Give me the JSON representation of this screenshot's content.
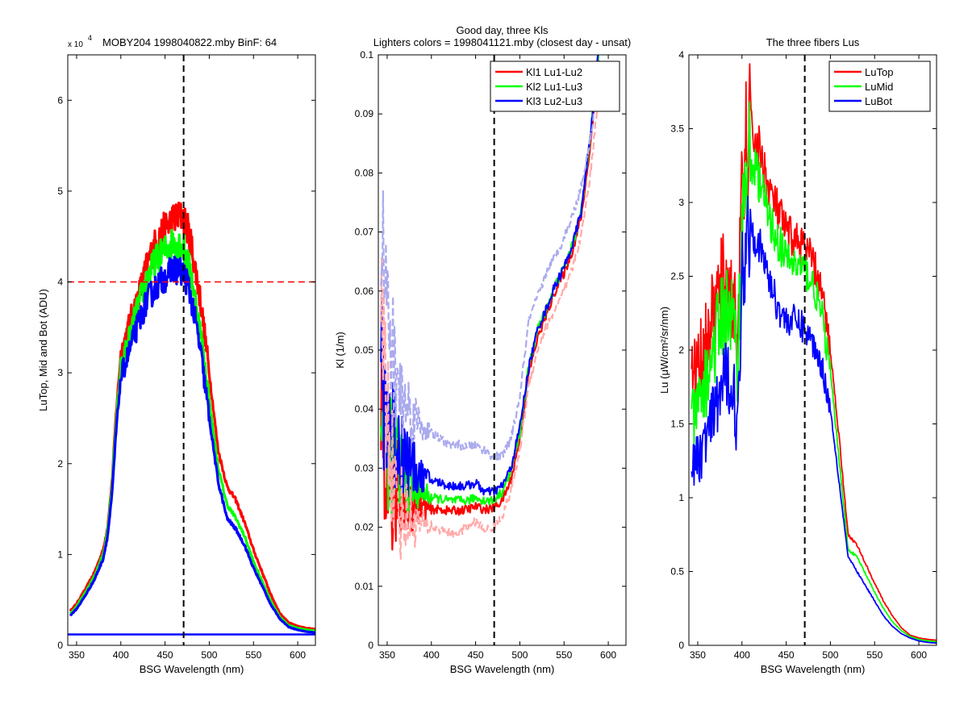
{
  "chart_data": [
    {
      "type": "line",
      "title": "MOBY204  1998040822.mby BinF: 64",
      "exponent_label": {
        "base": "x 10",
        "power": "4"
      },
      "xlabel": "BSG Wavelength (nm)",
      "ylabel": "LuTop, Mid and Bot (ADU)",
      "xlim": [
        340,
        620
      ],
      "ylim": [
        0,
        65000
      ],
      "xticks": [
        350,
        400,
        450,
        500,
        550,
        600
      ],
      "xtick_labels": [
        "350",
        "400",
        "450",
        "500",
        "550",
        "600"
      ],
      "yticks": [
        0,
        10000,
        20000,
        30000,
        40000,
        50000,
        60000
      ],
      "ytick_labels": [
        "0",
        "1",
        "2",
        "3",
        "4",
        "5",
        "6"
      ],
      "grid": false,
      "noisy_band_series": [
        "LuTop",
        "LuMid",
        "LuBot"
      ],
      "vline": {
        "x": 471,
        "color": "#000000",
        "style": "dashed"
      },
      "hline": {
        "y": 40000,
        "color": "#ff0000",
        "style": "dashed"
      },
      "flat_line": {
        "y": 1200,
        "color": "#0000ff"
      },
      "series": [
        {
          "name": "LuTop",
          "color": "#ff0000",
          "x": [
            343,
            350,
            360,
            370,
            380,
            385,
            390,
            395,
            400,
            410,
            420,
            430,
            440,
            450,
            460,
            470,
            475,
            480,
            490,
            500,
            510,
            520,
            530,
            540,
            550,
            560,
            570,
            580,
            590,
            600,
            610,
            620
          ],
          "y": [
            3800,
            4600,
            6200,
            8000,
            10500,
            13000,
            18000,
            26000,
            32000,
            35500,
            38500,
            42000,
            44500,
            46000,
            47000,
            47200,
            46000,
            44000,
            38000,
            30000,
            21500,
            17500,
            16000,
            13500,
            10500,
            8000,
            5500,
            3500,
            2500,
            2100,
            1900,
            1800
          ]
        },
        {
          "name": "LuMid",
          "color": "#00ff00",
          "x": [
            343,
            350,
            360,
            370,
            380,
            385,
            390,
            395,
            400,
            410,
            420,
            430,
            440,
            450,
            460,
            470,
            475,
            480,
            490,
            500,
            510,
            520,
            530,
            540,
            550,
            560,
            570,
            580,
            590,
            600,
            610,
            620
          ],
          "y": [
            3500,
            4300,
            5800,
            7600,
            10000,
            12500,
            17500,
            25000,
            30500,
            34000,
            37500,
            40500,
            42500,
            43500,
            44500,
            44000,
            42500,
            40500,
            34500,
            27000,
            19500,
            15500,
            14000,
            12000,
            9200,
            7000,
            4800,
            3100,
            2200,
            1900,
            1700,
            1600
          ]
        },
        {
          "name": "LuBot",
          "color": "#0000ff",
          "x": [
            343,
            350,
            360,
            370,
            380,
            385,
            390,
            395,
            400,
            410,
            420,
            430,
            440,
            450,
            460,
            470,
            475,
            480,
            490,
            500,
            510,
            520,
            530,
            540,
            550,
            560,
            570,
            580,
            590,
            600,
            610,
            620
          ],
          "y": [
            3300,
            4000,
            5500,
            7200,
            9500,
            12000,
            16500,
            24000,
            29500,
            32500,
            35500,
            38000,
            39500,
            40500,
            41500,
            41000,
            40000,
            38000,
            32500,
            25000,
            18000,
            14000,
            12800,
            11000,
            8500,
            6500,
            4400,
            2900,
            2000,
            1700,
            1500,
            1400
          ]
        }
      ]
    },
    {
      "type": "line",
      "title": "Good day, three Kls",
      "subtitle": "Lighters colors = 1998041121.mby (closest day - unsat)",
      "xlabel": "BSG Wavelength (nm)",
      "ylabel": "Kl (1/m)",
      "xlim": [
        340,
        620
      ],
      "ylim": [
        0,
        0.1
      ],
      "xticks": [
        350,
        400,
        450,
        500,
        550,
        600
      ],
      "xtick_labels": [
        "350",
        "400",
        "450",
        "500",
        "550",
        "600"
      ],
      "yticks": [
        0,
        0.01,
        0.02,
        0.03,
        0.04,
        0.05,
        0.06,
        0.07,
        0.08,
        0.09,
        0.1
      ],
      "ytick_labels": [
        "0",
        "0.01",
        "0.02",
        "0.03",
        "0.04",
        "0.05",
        "0.06",
        "0.07",
        "0.08",
        "0.09",
        "0.1"
      ],
      "grid": false,
      "legend": {
        "position": "top-right",
        "entries": [
          "Kl1 Lu1-Lu2",
          "Kl2 Lu1-Lu3",
          "Kl3 Lu2-Lu3"
        ]
      },
      "noisy_series": [
        "Kl1 Lu1-Lu2",
        "Kl2 Lu1-Lu3",
        "Kl3 Lu2-Lu3"
      ],
      "vline": {
        "x": 471,
        "color": "#000000",
        "style": "dashed"
      },
      "series": [
        {
          "name": "Kl1 Lu1-Lu2",
          "color": "#ff0000",
          "x": [
            343,
            350,
            360,
            370,
            380,
            390,
            400,
            410,
            420,
            430,
            440,
            450,
            460,
            470,
            480,
            490,
            500,
            510,
            520,
            530,
            540,
            550,
            560,
            570,
            580,
            590
          ],
          "y": [
            0.04,
            0.03,
            0.026,
            0.025,
            0.024,
            0.0235,
            0.023,
            0.023,
            0.0228,
            0.0228,
            0.023,
            0.0235,
            0.023,
            0.0232,
            0.0245,
            0.028,
            0.035,
            0.046,
            0.052,
            0.056,
            0.06,
            0.063,
            0.067,
            0.073,
            0.085,
            0.1
          ]
        },
        {
          "name": "Kl2 Lu1-Lu3",
          "color": "#00ff00",
          "x": [
            343,
            350,
            360,
            370,
            380,
            390,
            400,
            410,
            420,
            430,
            440,
            450,
            460,
            470,
            480,
            490,
            500,
            510,
            520,
            530,
            540,
            550,
            560,
            570,
            580,
            590
          ],
          "y": [
            0.042,
            0.036,
            0.031,
            0.029,
            0.027,
            0.026,
            0.025,
            0.0248,
            0.0245,
            0.0245,
            0.0245,
            0.025,
            0.0245,
            0.0245,
            0.026,
            0.0295,
            0.036,
            0.047,
            0.0535,
            0.057,
            0.061,
            0.064,
            0.068,
            0.074,
            0.087,
            0.102
          ]
        },
        {
          "name": "Kl3 Lu2-Lu3",
          "color": "#0000ff",
          "x": [
            343,
            350,
            360,
            370,
            380,
            390,
            400,
            410,
            420,
            430,
            440,
            450,
            460,
            470,
            480,
            490,
            500,
            510,
            520,
            530,
            540,
            550,
            560,
            570,
            580,
            590
          ],
          "y": [
            0.045,
            0.04,
            0.035,
            0.032,
            0.03,
            0.0285,
            0.028,
            0.0275,
            0.027,
            0.027,
            0.027,
            0.0275,
            0.026,
            0.026,
            0.027,
            0.03,
            0.037,
            0.047,
            0.0535,
            0.057,
            0.061,
            0.064,
            0.068,
            0.074,
            0.087,
            0.102
          ]
        },
        {
          "name": "",
          "color": "#ffaaaa",
          "style": "dashed",
          "x": [
            343,
            350,
            360,
            370,
            380,
            390,
            400,
            410,
            420,
            430,
            440,
            450,
            460,
            470,
            480,
            490,
            500,
            510,
            520,
            530,
            540,
            550,
            560,
            570,
            580,
            590
          ],
          "y": [
            0.06,
            0.04,
            0.024,
            0.022,
            0.021,
            0.0205,
            0.02,
            0.0195,
            0.019,
            0.019,
            0.02,
            0.021,
            0.0195,
            0.02,
            0.022,
            0.026,
            0.033,
            0.044,
            0.05,
            0.054,
            0.057,
            0.06,
            0.064,
            0.07,
            0.08,
            0.095
          ]
        },
        {
          "name": "",
          "color": "#aaaaee",
          "style": "dashed",
          "x": [
            343,
            350,
            360,
            370,
            380,
            390,
            400,
            410,
            420,
            430,
            440,
            450,
            460,
            470,
            480,
            490,
            500,
            510,
            520,
            530,
            540,
            550,
            560,
            570,
            580,
            590
          ],
          "y": [
            0.075,
            0.055,
            0.045,
            0.041,
            0.039,
            0.037,
            0.036,
            0.035,
            0.034,
            0.034,
            0.0335,
            0.034,
            0.033,
            0.032,
            0.032,
            0.035,
            0.042,
            0.055,
            0.059,
            0.063,
            0.066,
            0.069,
            0.073,
            0.078,
            0.086,
            0.098
          ]
        }
      ]
    },
    {
      "type": "line",
      "title": "The three fibers Lus",
      "xlabel": "BSG Wavelength (nm)",
      "ylabel": "Lu (μW/cm²/sr/nm)",
      "xlim": [
        340,
        620
      ],
      "ylim": [
        0,
        4
      ],
      "xticks": [
        350,
        400,
        450,
        500,
        550,
        600
      ],
      "xtick_labels": [
        "350",
        "400",
        "450",
        "500",
        "550",
        "600"
      ],
      "yticks": [
        0,
        0.5,
        1,
        1.5,
        2,
        2.5,
        3,
        3.5,
        4
      ],
      "ytick_labels": [
        "0",
        "0.5",
        "1",
        "1.5",
        "2",
        "2.5",
        "3",
        "3.5",
        "4"
      ],
      "grid": false,
      "legend": {
        "position": "top-right",
        "entries": [
          "LuTop",
          "LuMid",
          "LuBot"
        ]
      },
      "noisy_series": [
        "LuTop",
        "LuMid",
        "LuBot"
      ],
      "vline": {
        "x": 471,
        "color": "#000000",
        "style": "dashed"
      },
      "series": [
        {
          "name": "LuTop",
          "color": "#ff0000",
          "x": [
            343,
            350,
            360,
            370,
            380,
            390,
            395,
            400,
            405,
            410,
            420,
            430,
            440,
            450,
            460,
            470,
            480,
            490,
            500,
            510,
            520,
            530,
            540,
            550,
            560,
            570,
            580,
            590,
            600,
            610,
            620
          ],
          "y": [
            1.8,
            1.9,
            2.05,
            2.3,
            2.5,
            2.35,
            2.1,
            3.0,
            3.4,
            3.5,
            3.35,
            3.1,
            2.95,
            2.8,
            2.75,
            2.7,
            2.6,
            2.4,
            2.0,
            1.4,
            0.75,
            0.68,
            0.55,
            0.42,
            0.3,
            0.2,
            0.12,
            0.07,
            0.05,
            0.04,
            0.035
          ]
        },
        {
          "name": "LuMid",
          "color": "#00ff00",
          "x": [
            343,
            350,
            360,
            370,
            380,
            390,
            395,
            400,
            405,
            410,
            420,
            430,
            440,
            450,
            460,
            470,
            480,
            490,
            500,
            510,
            520,
            530,
            540,
            550,
            560,
            570,
            580,
            590,
            600,
            610,
            620
          ],
          "y": [
            1.5,
            1.6,
            1.8,
            2.05,
            2.3,
            2.2,
            1.9,
            2.8,
            3.2,
            3.3,
            3.15,
            2.9,
            2.75,
            2.62,
            2.58,
            2.55,
            2.45,
            2.25,
            1.85,
            1.25,
            0.65,
            0.6,
            0.48,
            0.36,
            0.25,
            0.16,
            0.1,
            0.06,
            0.04,
            0.03,
            0.025
          ]
        },
        {
          "name": "LuBot",
          "color": "#0000ff",
          "x": [
            343,
            350,
            360,
            370,
            380,
            390,
            395,
            400,
            405,
            410,
            420,
            430,
            440,
            450,
            460,
            470,
            480,
            490,
            500,
            510,
            520,
            530,
            540,
            550,
            560,
            570,
            580,
            590,
            600,
            610,
            620
          ],
          "y": [
            1.2,
            1.25,
            1.4,
            1.6,
            1.8,
            1.8,
            1.4,
            2.5,
            2.8,
            2.85,
            2.7,
            2.5,
            2.3,
            2.2,
            2.2,
            2.15,
            2.05,
            1.9,
            1.6,
            1.1,
            0.6,
            0.5,
            0.4,
            0.3,
            0.2,
            0.13,
            0.08,
            0.05,
            0.03,
            0.02,
            0.015
          ]
        }
      ]
    }
  ]
}
